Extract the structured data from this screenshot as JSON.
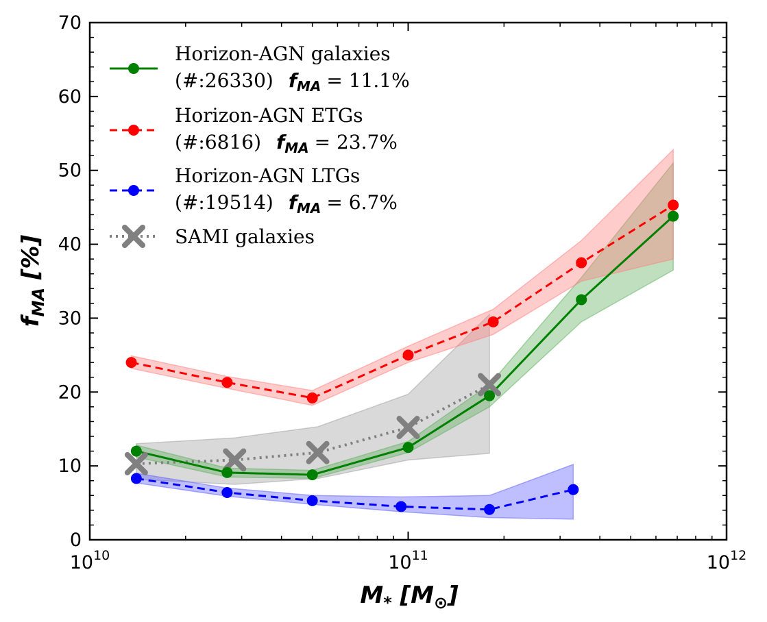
{
  "chart_data": {
    "type": "line",
    "xscale": "log",
    "xlim": [
      10000000000.0,
      1000000000000.0
    ],
    "ylim": [
      0,
      70
    ],
    "xlabel": "M* [M⊙]",
    "xlabel_main": "M",
    "xlabel_sub": "*",
    "xlabel_unit_open": " [M",
    "xlabel_unit_sub": "⊙",
    "xlabel_unit_close": "]",
    "ylabel": "fMA [%]",
    "ylabel_main": "f",
    "ylabel_sub": "MA",
    "ylabel_unit": " [%]",
    "y_ticks": [
      0,
      10,
      20,
      30,
      40,
      50,
      60,
      70
    ],
    "y_tick_labels": [
      "0",
      "10",
      "20",
      "30",
      "40",
      "50",
      "60",
      "70"
    ],
    "x_ticks": [
      {
        "value": 10000000000.0,
        "base": "10",
        "exp": "10"
      },
      {
        "value": 100000000000.0,
        "base": "10",
        "exp": "11"
      },
      {
        "value": 1000000000000.0,
        "base": "10",
        "exp": "12"
      }
    ],
    "series": [
      {
        "key": "etg",
        "line1": "Horizon-AGN ETGs",
        "line2_prefix": "(#:6816)",
        "fma_value": "= 23.7%",
        "color": "#ff0000",
        "band_color": "#ff8080",
        "dash": "11,7",
        "x": [
          13500000000.0,
          27000000000.0,
          50000000000.0,
          100000000000.0,
          185000000000.0,
          350000000000.0,
          680000000000.0
        ],
        "y": [
          24.0,
          21.3,
          19.2,
          25.0,
          29.5,
          37.5,
          45.3
        ],
        "lower": [
          23.2,
          20.5,
          18.2,
          24.0,
          27.8,
          35.0,
          38.0
        ],
        "upper": [
          24.9,
          22.1,
          20.2,
          26.2,
          31.2,
          40.5,
          52.8
        ]
      },
      {
        "key": "all",
        "line1": "Horizon-AGN galaxies",
        "line2_prefix": "(#:26330)",
        "fma_value": "= 11.1%",
        "color": "#008000",
        "band_color": "#60b060",
        "dash": "",
        "x": [
          14000000000.0,
          27000000000.0,
          50000000000.0,
          100000000000.0,
          180000000000.0,
          350000000000.0,
          680000000000.0
        ],
        "y": [
          12.0,
          9.1,
          8.8,
          12.5,
          19.5,
          32.5,
          43.8
        ],
        "lower": [
          11.2,
          8.5,
          8.3,
          11.8,
          18.0,
          29.5,
          36.5
        ],
        "upper": [
          12.8,
          9.7,
          9.4,
          13.3,
          21.0,
          35.5,
          51.0
        ]
      },
      {
        "key": "ltg",
        "line1": "Horizon-AGN LTGs",
        "line2_prefix": "(#:19514)",
        "fma_value": "= 6.7%",
        "color": "#0000ff",
        "band_color": "#6060ff",
        "dash": "11,7",
        "x": [
          14000000000.0,
          27000000000.0,
          50000000000.0,
          95000000000.0,
          180000000000.0,
          330000000000.0
        ],
        "y": [
          8.3,
          6.4,
          5.3,
          4.5,
          4.1,
          6.8
        ],
        "lower": [
          7.7,
          5.9,
          4.8,
          3.8,
          3.0,
          2.8
        ],
        "upper": [
          9.0,
          7.0,
          6.0,
          5.8,
          6.0,
          10.2
        ]
      },
      {
        "key": "sami",
        "line1": "SAMI galaxies",
        "color": "#808080",
        "band_color": "#a0a0a0",
        "dash": "3,6",
        "x": [
          14000000000.0,
          28500000000.0,
          52000000000.0,
          100000000000.0,
          180000000000.0
        ],
        "y": [
          10.3,
          10.8,
          11.8,
          15.2,
          21.0
        ],
        "lower": [
          8.2,
          7.5,
          8.3,
          10.8,
          11.7
        ],
        "upper": [
          13.0,
          13.8,
          15.3,
          19.7,
          30.5
        ]
      }
    ],
    "legend_position": "upper-left",
    "legend_fma_label": "f",
    "legend_fma_sub": "MA"
  }
}
